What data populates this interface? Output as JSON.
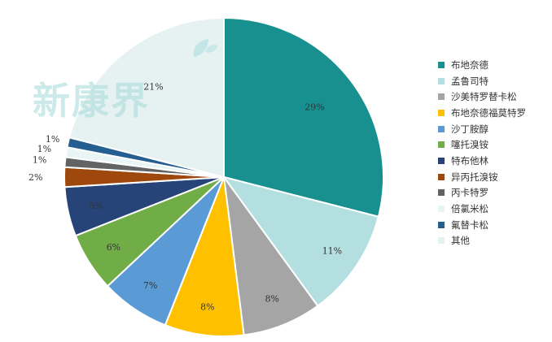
{
  "chart_data": {
    "type": "pie",
    "title": "",
    "slices": [
      {
        "label": "布地奈德",
        "value": 29,
        "display": "29%",
        "color": "#17908f"
      },
      {
        "label": "孟鲁司特",
        "value": 11,
        "display": "11%",
        "color": "#b4dfe1"
      },
      {
        "label": "沙美特罗替卡松",
        "value": 8,
        "display": "8%",
        "color": "#a5a5a5"
      },
      {
        "label": "布地奈德福莫特罗",
        "value": 8,
        "display": "8%",
        "color": "#ffc000"
      },
      {
        "label": "沙丁胺醇",
        "value": 7,
        "display": "7%",
        "color": "#5b9bd5"
      },
      {
        "label": "噻托溴铵",
        "value": 6,
        "display": "6%",
        "color": "#70ad47"
      },
      {
        "label": "特布他林",
        "value": 5,
        "display": "5%",
        "color": "#264478"
      },
      {
        "label": "异丙托溴铵",
        "value": 2,
        "display": "2%",
        "color": "#9e480e"
      },
      {
        "label": "丙卡特罗",
        "value": 1,
        "display": "1%",
        "color": "#636363"
      },
      {
        "label": "倍氯米松",
        "value": 1,
        "display": "1%",
        "color": "#e9f5f5"
      },
      {
        "label": "氟替卡松",
        "value": 1,
        "display": "1%",
        "color": "#255e91"
      },
      {
        "label": "其他",
        "value": 21,
        "display": "21%",
        "color": "#e6f2f2"
      }
    ],
    "legend_position": "right"
  },
  "watermark": {
    "text": "新康界"
  }
}
